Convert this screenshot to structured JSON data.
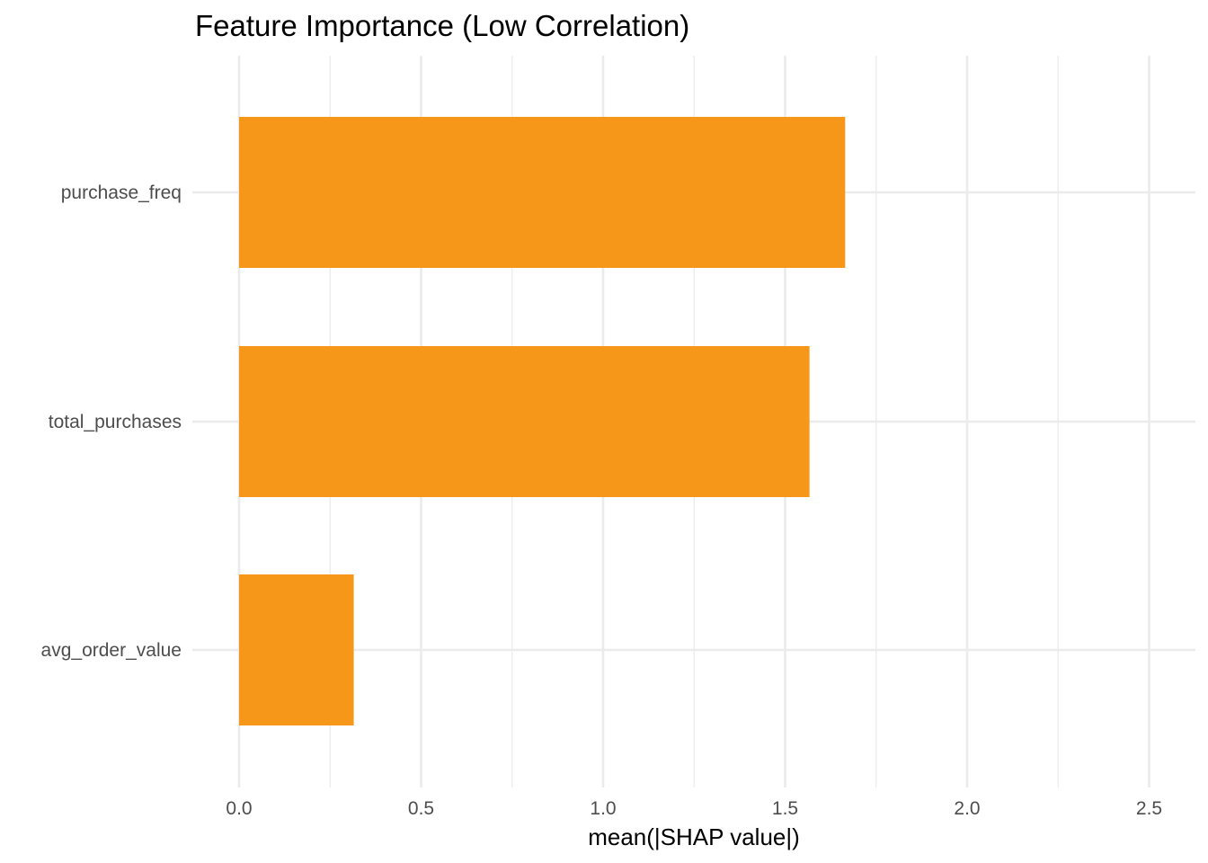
{
  "chart_data": {
    "type": "bar",
    "orientation": "horizontal",
    "title": "Feature Importance (Low Correlation)",
    "xlabel": "mean(|SHAP value|)",
    "ylabel": "",
    "categories": [
      "purchase_freq",
      "total_purchases",
      "avg_order_value"
    ],
    "values": [
      1.665,
      1.567,
      0.315
    ],
    "xlim": [
      0,
      2.6
    ],
    "xticks": [
      0.0,
      0.5,
      1.0,
      1.5,
      2.0,
      2.5
    ],
    "xtick_labels": [
      "0.0",
      "0.5",
      "1.0",
      "1.5",
      "2.0",
      "2.5"
    ],
    "bar_color": "#F7971A",
    "grid": true,
    "legend": "none"
  }
}
